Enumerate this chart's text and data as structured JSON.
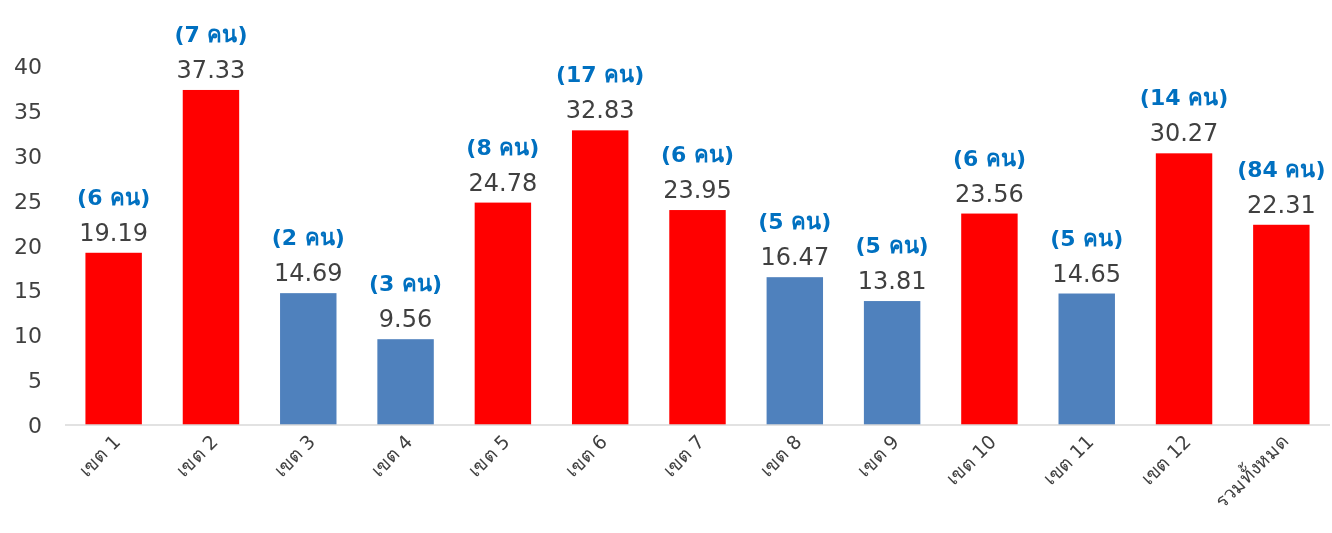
{
  "chart_data": {
    "type": "bar",
    "categories": [
      "เขต 1",
      "เขต 2",
      "เขต 3",
      "เขต 4",
      "เขต 5",
      "เขต 6",
      "เขต 7",
      "เขต 8",
      "เขต 9",
      "เขต 10",
      "เขต 11",
      "เขต 12",
      "รวมทั้งหมด"
    ],
    "values": [
      19.19,
      37.33,
      14.69,
      9.56,
      24.78,
      32.83,
      23.95,
      16.47,
      13.81,
      23.56,
      14.65,
      30.27,
      22.31
    ],
    "colors": [
      "#ff0000",
      "#ff0000",
      "#4f81bd",
      "#4f81bd",
      "#ff0000",
      "#ff0000",
      "#ff0000",
      "#4f81bd",
      "#4f81bd",
      "#ff0000",
      "#4f81bd",
      "#ff0000",
      "#ff0000"
    ],
    "data_labels": true,
    "ylim": [
      0,
      40
    ],
    "yticks": [
      0,
      5,
      10,
      15,
      20,
      25,
      30,
      35,
      40
    ],
    "grid": false,
    "annotations": [
      {
        "text": "(6 คน)",
        "x": "เขต 1",
        "y": 19.19
      },
      {
        "text": "(7 คน)",
        "x": "เขต 2",
        "y": 37.33
      },
      {
        "text": "(2 คน)",
        "x": "เขต 3",
        "y": 14.69
      },
      {
        "text": "(3 คน)",
        "x": "เขต 4",
        "y": 9.56
      },
      {
        "text": "(8 คน)",
        "x": "เขต 5",
        "y": 24.78
      },
      {
        "text": "(17 คน)",
        "x": "เขต 6",
        "y": 32.83
      },
      {
        "text": "(6 คน)",
        "x": "เขต 7",
        "y": 23.95
      },
      {
        "text": "(5 คน)",
        "x": "เขต 8",
        "y": 16.47
      },
      {
        "text": "(5 คน)",
        "x": "เขต 9",
        "y": 13.81
      },
      {
        "text": "(6 คน)",
        "x": "เขต 10",
        "y": 23.56
      },
      {
        "text": "(5 คน)",
        "x": "เขต 11",
        "y": 14.65
      },
      {
        "text": "(14 คน)",
        "x": "เขต 12",
        "y": 30.27
      },
      {
        "text": "(84 คน)",
        "x": "รวมทั้งหมด",
        "y": 22.31
      }
    ]
  }
}
